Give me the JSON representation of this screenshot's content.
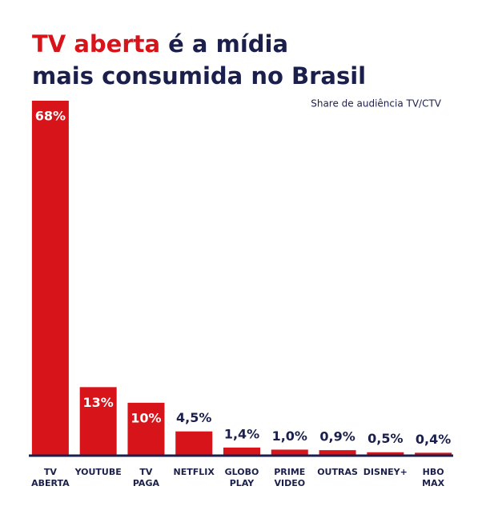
{
  "chart_data": {
    "type": "bar",
    "title_parts": [
      "TV aberta",
      "é a mídia",
      "mais consumida no Brasil"
    ],
    "subtitle": "Share de audiência TV/CTV",
    "categories": [
      "TV ABERTA",
      "YOUTUBE",
      "TV PAGA",
      "NETFLIX",
      "GLOBO PLAY",
      "PRIME VIDEO",
      "OUTRAS",
      "DISNEY+",
      "HBO MAX"
    ],
    "values": [
      68,
      13,
      10,
      4.5,
      1.4,
      1.0,
      0.9,
      0.5,
      0.4
    ],
    "value_labels": [
      "68%",
      "13%",
      "10%",
      "4,5%",
      "1,4%",
      "1,0%",
      "0,9%",
      "0,5%",
      "0,4%"
    ],
    "color": "#d7141a",
    "highlight_color": "#d7141a",
    "text_color": "#1b1f4b"
  }
}
